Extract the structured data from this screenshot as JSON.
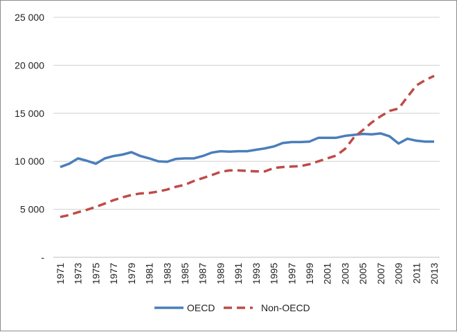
{
  "chart_data": {
    "type": "line",
    "title": "",
    "xlabel": "",
    "ylabel": "",
    "ylim": [
      0,
      25000
    ],
    "y_ticks": [
      {
        "value": 0,
        "label": "-"
      },
      {
        "value": 5000,
        "label": "5 000"
      },
      {
        "value": 10000,
        "label": "10 000"
      },
      {
        "value": 15000,
        "label": "15 000"
      },
      {
        "value": 20000,
        "label": "20 000"
      },
      {
        "value": 25000,
        "label": "25 000"
      }
    ],
    "x": [
      1971,
      1972,
      1973,
      1974,
      1975,
      1976,
      1977,
      1978,
      1979,
      1980,
      1981,
      1982,
      1983,
      1984,
      1985,
      1986,
      1987,
      1988,
      1989,
      1990,
      1991,
      1992,
      1993,
      1994,
      1995,
      1996,
      1997,
      1998,
      1999,
      2000,
      2001,
      2002,
      2003,
      2004,
      2005,
      2006,
      2007,
      2008,
      2009,
      2010,
      2011,
      2012,
      2013
    ],
    "x_tick_labels": [
      "1971",
      "1973",
      "1975",
      "1977",
      "1979",
      "1981",
      "1983",
      "1985",
      "1987",
      "1989",
      "1991",
      "1993",
      "1995",
      "1997",
      "1999",
      "2001",
      "2003",
      "2005",
      "2007",
      "2009",
      "2011",
      "2013"
    ],
    "legend_position": "bottom",
    "grid": "horizontal",
    "series": [
      {
        "name": "OECD",
        "color": "#4a7ebb",
        "style": "solid",
        "values": [
          9400,
          9750,
          10300,
          10050,
          9750,
          10300,
          10550,
          10700,
          10950,
          10550,
          10300,
          10000,
          9950,
          10250,
          10300,
          10300,
          10550,
          10900,
          11050,
          11000,
          11050,
          11050,
          11200,
          11350,
          11550,
          11900,
          12000,
          12000,
          12050,
          12450,
          12450,
          12450,
          12650,
          12750,
          12850,
          12800,
          12900,
          12600,
          11850,
          12350,
          12150,
          12050,
          12050
        ]
      },
      {
        "name": "Non-OECD",
        "color": "#be4b48",
        "style": "dashed",
        "values": [
          4200,
          4400,
          4700,
          4950,
          5250,
          5600,
          5950,
          6250,
          6500,
          6650,
          6700,
          6850,
          7050,
          7350,
          7550,
          7950,
          8250,
          8550,
          8900,
          9050,
          9050,
          9000,
          8950,
          8950,
          9300,
          9400,
          9450,
          9500,
          9700,
          10000,
          10300,
          10600,
          11300,
          12500,
          13250,
          14050,
          14700,
          15250,
          15500,
          16700,
          17900,
          18450,
          18900
        ]
      }
    ]
  }
}
